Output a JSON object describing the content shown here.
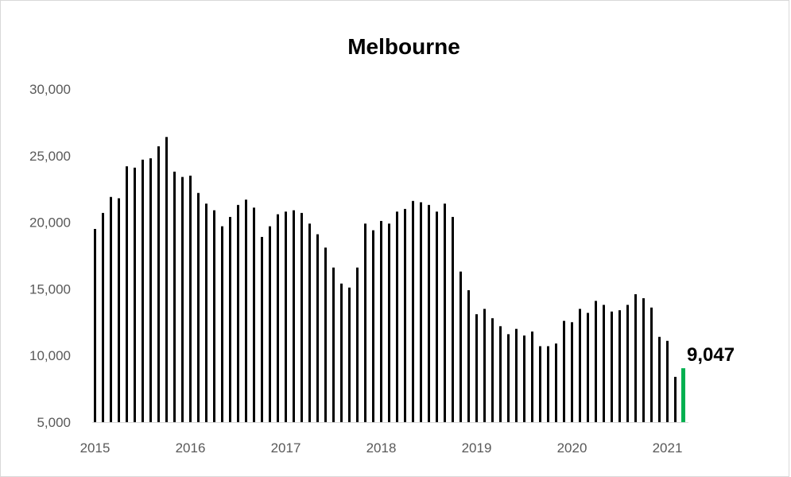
{
  "chart_data": {
    "type": "bar",
    "title": "Melbourne",
    "xlabel": "",
    "ylabel": "",
    "ylim": [
      5000,
      30000
    ],
    "y_ticks": [
      "5,000",
      "10,000",
      "15,000",
      "20,000",
      "25,000",
      "30,000"
    ],
    "y_tick_values": [
      5000,
      10000,
      15000,
      20000,
      25000,
      30000
    ],
    "x_ticks": [
      "2015",
      "2016",
      "2017",
      "2018",
      "2019",
      "2020",
      "2021"
    ],
    "x_tick_indices": [
      0,
      12,
      24,
      36,
      48,
      60,
      72
    ],
    "start": "2015-01",
    "frequency": "monthly",
    "grid": false,
    "values": [
      19500,
      20700,
      21900,
      21800,
      24200,
      24100,
      24700,
      24800,
      25700,
      26400,
      23800,
      23400,
      23500,
      22200,
      21400,
      20900,
      19700,
      20400,
      21300,
      21700,
      21100,
      18900,
      19700,
      20600,
      20800,
      20900,
      20700,
      19900,
      19100,
      18100,
      16600,
      15400,
      15100,
      16600,
      19900,
      19400,
      20100,
      19900,
      20800,
      21000,
      21600,
      21500,
      21300,
      20800,
      21400,
      20400,
      16300,
      14900,
      13100,
      13500,
      12800,
      12200,
      11600,
      12000,
      11500,
      11800,
      10700,
      10700,
      10900,
      12600,
      12500,
      13500,
      13200,
      14100,
      13800,
      13300,
      13400,
      13800,
      14600,
      14300,
      13600,
      11400,
      11100,
      8400,
      9047
    ],
    "colors": {
      "bar": "#000000",
      "highlight": "#00b050"
    },
    "highlight_index": 74,
    "annotations": [
      {
        "index": 74,
        "text": "9,047"
      }
    ]
  }
}
